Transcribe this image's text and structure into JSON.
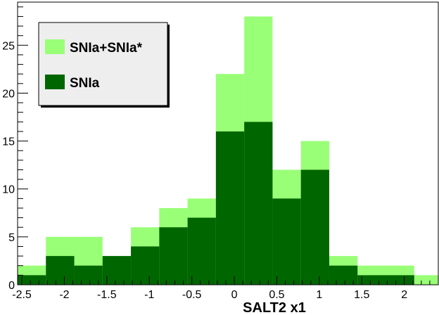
{
  "chart_data": {
    "type": "bar",
    "subtype": "stacked-histogram",
    "title": "",
    "xlabel": "SALT2 x1",
    "ylabel": "",
    "xlim": [
      -2.55,
      2.4
    ],
    "ylim": [
      0,
      29.5
    ],
    "bin_width": 0.3333,
    "bin_edges": [
      -2.55,
      -2.2167,
      -1.8833,
      -1.55,
      -1.2167,
      -0.8833,
      -0.55,
      -0.2167,
      0.1167,
      0.45,
      0.7833,
      1.1167,
      1.45,
      1.7833,
      2.1167,
      2.45
    ],
    "x_ticks": [
      -2.5,
      -2,
      -1.5,
      -1,
      -0.5,
      0,
      0.5,
      1,
      1.5,
      2
    ],
    "x_tick_labels": [
      "-2.5",
      "-2",
      "-1.5",
      "-1",
      "-0.5",
      "0",
      "0.5",
      "1",
      "1.5",
      "2"
    ],
    "y_ticks": [
      0,
      5,
      10,
      15,
      20,
      25
    ],
    "y_tick_labels": [
      "0",
      "5",
      "10",
      "15",
      "20",
      "25"
    ],
    "series": [
      {
        "name": "SNIa+SNIa*",
        "color": "#99ff77",
        "values": [
          2,
          5,
          5,
          3,
          6,
          8,
          9,
          22,
          28,
          12,
          15,
          3,
          2,
          2,
          1
        ]
      },
      {
        "name": "SNIa",
        "color": "#006600",
        "values": [
          1,
          3,
          2,
          3,
          4,
          6,
          7,
          16,
          17,
          9,
          12,
          2,
          1,
          1,
          0
        ]
      }
    ],
    "legend": {
      "position": "top-left"
    },
    "grid": false
  }
}
